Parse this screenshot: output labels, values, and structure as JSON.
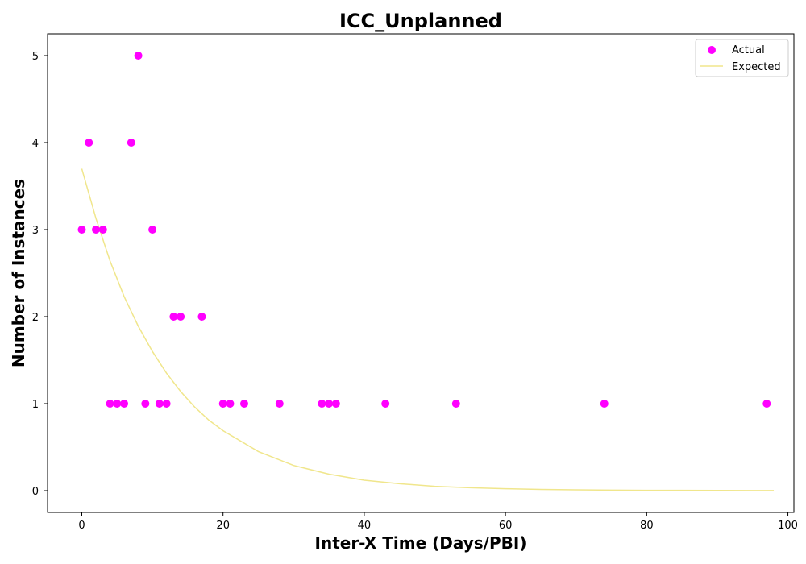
{
  "chart_data": {
    "type": "scatter",
    "title": "ICC_Unplanned",
    "xlabel": "Inter-X Time (Days/PBI)",
    "ylabel": "Number of Instances",
    "xlim": [
      -4.85,
      100.85
    ],
    "ylim": [
      -0.25,
      5.25
    ],
    "xticks": [
      0,
      20,
      40,
      60,
      80,
      100
    ],
    "yticks": [
      0,
      1,
      2,
      3,
      4,
      5
    ],
    "grid": false,
    "legend_position": "top-right",
    "series": [
      {
        "name": "Actual",
        "kind": "scatter",
        "color": "#ff00ff",
        "x": [
          0,
          1,
          2,
          3,
          4,
          5,
          6,
          7,
          8,
          9,
          10,
          11,
          12,
          13,
          14,
          17,
          20,
          21,
          23,
          28,
          34,
          35,
          36,
          43,
          53,
          74,
          97
        ],
        "y": [
          3,
          4,
          3,
          3,
          1,
          1,
          1,
          4,
          5,
          1,
          3,
          1,
          1,
          2,
          2,
          2,
          1,
          1,
          1,
          1,
          1,
          1,
          1,
          1,
          1,
          1,
          1
        ]
      },
      {
        "name": "Expected",
        "kind": "line",
        "color": "#f0e68c",
        "x": [
          0,
          2,
          4,
          6,
          8,
          10,
          12,
          14,
          16,
          18,
          20,
          25,
          30,
          35,
          40,
          45,
          50,
          55,
          60,
          65,
          70,
          75,
          80,
          85,
          90,
          95,
          98
        ],
        "y": [
          3.7,
          3.13,
          2.64,
          2.23,
          1.89,
          1.6,
          1.35,
          1.14,
          0.96,
          0.81,
          0.69,
          0.45,
          0.29,
          0.19,
          0.12,
          0.08,
          0.05,
          0.034,
          0.022,
          0.014,
          0.009,
          0.006,
          0.004,
          0.003,
          0.002,
          0.001,
          0.001
        ]
      }
    ]
  }
}
